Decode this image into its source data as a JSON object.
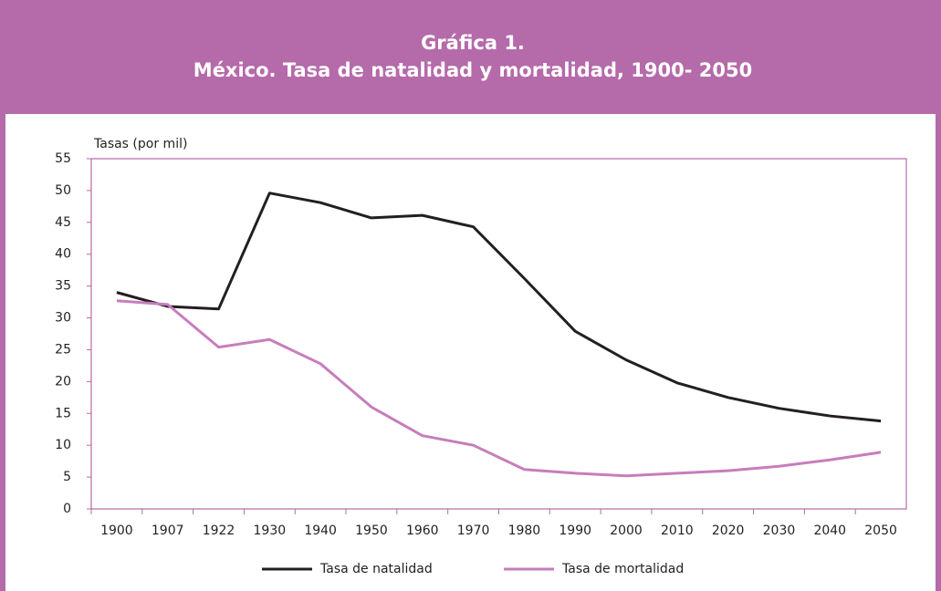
{
  "chart_data": {
    "type": "line",
    "title": "Gráfica 1.",
    "subtitle": "México. Tasa de natalidad y mortalidad, 1900- 2050",
    "y_axis_label": "Tasas (por mil)",
    "categories": [
      "1900",
      "1907",
      "1922",
      "1930",
      "1940",
      "1950",
      "1960",
      "1970",
      "1980",
      "1990",
      "2000",
      "2010",
      "2020",
      "2030",
      "2040",
      "2050"
    ],
    "series": [
      {
        "name": "Tasa de natalidad",
        "color": "#231f20",
        "values": [
          34.0,
          31.8,
          31.4,
          49.6,
          48.1,
          45.7,
          46.1,
          44.3,
          36.2,
          27.9,
          23.4,
          19.8,
          17.5,
          15.8,
          14.6,
          13.8
        ]
      },
      {
        "name": "Tasa de mortalidad",
        "color": "#c77dbb",
        "values": [
          32.7,
          32.1,
          25.4,
          26.6,
          22.8,
          16.0,
          11.5,
          10.0,
          6.2,
          5.6,
          5.2,
          5.6,
          6.0,
          6.7,
          7.7,
          8.9
        ]
      }
    ],
    "ylim": [
      0,
      55
    ],
    "yticks": [
      0,
      5,
      10,
      15,
      20,
      25,
      30,
      35,
      40,
      45,
      50,
      55
    ],
    "grid": false,
    "legend": "bottom",
    "frame_color": "#b56aa9"
  }
}
